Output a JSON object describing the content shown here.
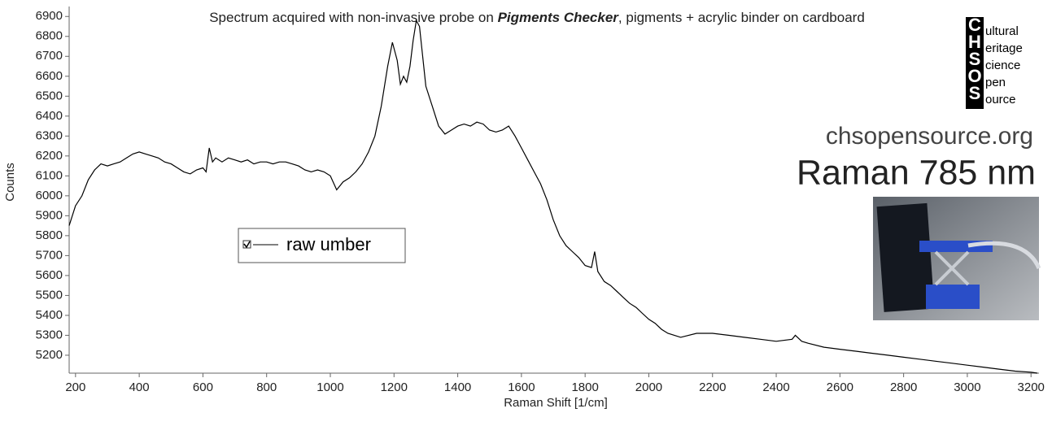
{
  "chart_data": {
    "type": "line",
    "title_parts": [
      "Spectrum acquired with non-invasive probe on ",
      "Pigments Checker",
      ", pigments + acrylic binder on cardboard"
    ],
    "x_label": "Raman Shift [1/cm]",
    "y_label": "Counts",
    "x": [
      180,
      200,
      220,
      240,
      260,
      280,
      300,
      320,
      340,
      360,
      380,
      400,
      420,
      440,
      460,
      480,
      500,
      520,
      540,
      560,
      580,
      600,
      610,
      620,
      630,
      640,
      660,
      680,
      700,
      720,
      740,
      760,
      780,
      800,
      820,
      840,
      860,
      880,
      900,
      920,
      940,
      960,
      980,
      1000,
      1020,
      1040,
      1060,
      1080,
      1100,
      1120,
      1140,
      1160,
      1180,
      1195,
      1210,
      1220,
      1230,
      1240,
      1250,
      1260,
      1270,
      1280,
      1290,
      1300,
      1320,
      1340,
      1360,
      1380,
      1400,
      1420,
      1440,
      1460,
      1480,
      1500,
      1520,
      1540,
      1560,
      1580,
      1600,
      1620,
      1640,
      1660,
      1680,
      1700,
      1720,
      1740,
      1760,
      1780,
      1800,
      1820,
      1830,
      1840,
      1860,
      1880,
      1900,
      1920,
      1940,
      1960,
      1980,
      2000,
      2020,
      2040,
      2060,
      2080,
      2100,
      2150,
      2200,
      2250,
      2300,
      2350,
      2400,
      2450,
      2460,
      2480,
      2500,
      2550,
      2600,
      2650,
      2700,
      2750,
      2800,
      2850,
      2900,
      2950,
      3000,
      3050,
      3100,
      3150,
      3200,
      3220
    ],
    "series": [
      {
        "name": "raw umber",
        "color": "#000000",
        "values": [
          5850,
          5950,
          6000,
          6080,
          6130,
          6160,
          6150,
          6160,
          6170,
          6190,
          6210,
          6220,
          6210,
          6200,
          6190,
          6170,
          6160,
          6140,
          6120,
          6110,
          6130,
          6140,
          6120,
          6240,
          6170,
          6190,
          6170,
          6190,
          6180,
          6170,
          6180,
          6160,
          6170,
          6170,
          6160,
          6170,
          6170,
          6160,
          6150,
          6130,
          6120,
          6130,
          6120,
          6100,
          6030,
          6070,
          6090,
          6120,
          6160,
          6220,
          6300,
          6450,
          6650,
          6770,
          6680,
          6560,
          6600,
          6570,
          6650,
          6780,
          6880,
          6850,
          6700,
          6550,
          6450,
          6350,
          6310,
          6330,
          6350,
          6360,
          6350,
          6370,
          6360,
          6330,
          6320,
          6330,
          6350,
          6300,
          6240,
          6180,
          6120,
          6060,
          5980,
          5880,
          5800,
          5750,
          5720,
          5690,
          5650,
          5640,
          5720,
          5620,
          5570,
          5550,
          5520,
          5490,
          5460,
          5440,
          5410,
          5380,
          5360,
          5330,
          5310,
          5300,
          5290,
          5310,
          5310,
          5300,
          5290,
          5280,
          5270,
          5280,
          5300,
          5270,
          5260,
          5240,
          5230,
          5220,
          5210,
          5200,
          5190,
          5180,
          5170,
          5160,
          5150,
          5140,
          5130,
          5120,
          5115,
          5110
        ]
      }
    ],
    "xlim": [
      180,
      3225
    ],
    "ylim": [
      5110,
      6950
    ],
    "xticks": [
      200,
      400,
      600,
      800,
      1000,
      1200,
      1400,
      1600,
      1800,
      2000,
      2200,
      2400,
      2600,
      2800,
      3000,
      3200
    ],
    "yticks": [
      5200,
      5300,
      5400,
      5500,
      5600,
      5700,
      5800,
      5900,
      6000,
      6100,
      6200,
      6300,
      6400,
      6500,
      6600,
      6700,
      6800,
      6900
    ],
    "grid": false
  },
  "branding": {
    "logo": {
      "letters": [
        "C",
        "H",
        "S",
        "O",
        "S"
      ],
      "words": [
        "ultural",
        "eritage",
        "cience",
        "pen",
        "ource"
      ]
    },
    "website": "chsopensource.org",
    "technique": "Raman 785 nm"
  }
}
